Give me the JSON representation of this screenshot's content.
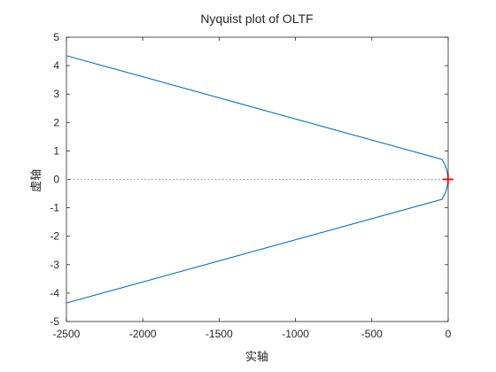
{
  "chart_data": {
    "type": "line",
    "title": "Nyquist plot of OLTF",
    "xlabel": "实轴",
    "ylabel": "虚轴",
    "xlim": [
      -2500,
      0
    ],
    "ylim": [
      -5,
      5
    ],
    "xticks": [
      -2500,
      -2000,
      -1500,
      -1000,
      -500,
      0
    ],
    "yticks": [
      -5,
      -4,
      -3,
      -2,
      -1,
      0,
      1,
      2,
      3,
      4,
      5
    ],
    "grid": false,
    "series": [
      {
        "color": "#0072BD",
        "x": [
          -2500,
          -40,
          -20,
          -8,
          0,
          -8,
          -20,
          -40,
          -2500
        ],
        "y": [
          4.35,
          0.7,
          0.5,
          0.3,
          0,
          -0.3,
          -0.5,
          -0.7,
          -4.35
        ]
      }
    ],
    "reference_line": {
      "y": 0,
      "style": "dotted",
      "color": "#8c8c8c"
    },
    "critical_point": {
      "x": -1,
      "y": 0,
      "marker": "plus",
      "color": "#ff0000"
    }
  }
}
